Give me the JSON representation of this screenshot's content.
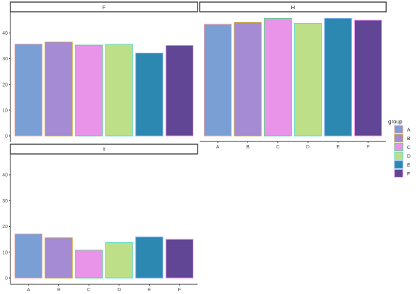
{
  "chart_data": {
    "type": "bar",
    "categories": [
      "A",
      "B",
      "C",
      "D",
      "E",
      "F"
    ],
    "ylim": [
      0,
      48
    ],
    "yticks": [
      0,
      10,
      20,
      30,
      40
    ],
    "grid": false,
    "legend": {
      "title": "group",
      "position": "right",
      "entries": [
        "A",
        "B",
        "C",
        "D",
        "E",
        "F"
      ]
    },
    "fills": [
      "#7A9FD4",
      "#A48BD4",
      "#E994E9",
      "#BDDF88",
      "#2C88B0",
      "#604694"
    ],
    "outlines": [
      "#F8A0A0",
      "#C8A840",
      "#60D090",
      "#60D8D8",
      "#80B0F0",
      "#F090F0"
    ],
    "facets": [
      {
        "label": "F",
        "values": [
          35.7,
          36.5,
          35.3,
          35.6,
          32.2,
          35.2
        ]
      },
      {
        "label": "H",
        "values": [
          43.4,
          44.1,
          45.7,
          43.8,
          45.7,
          45.0
        ]
      },
      {
        "label": "T",
        "values": [
          17.1,
          15.6,
          10.8,
          13.8,
          15.9,
          15.0
        ]
      }
    ]
  }
}
